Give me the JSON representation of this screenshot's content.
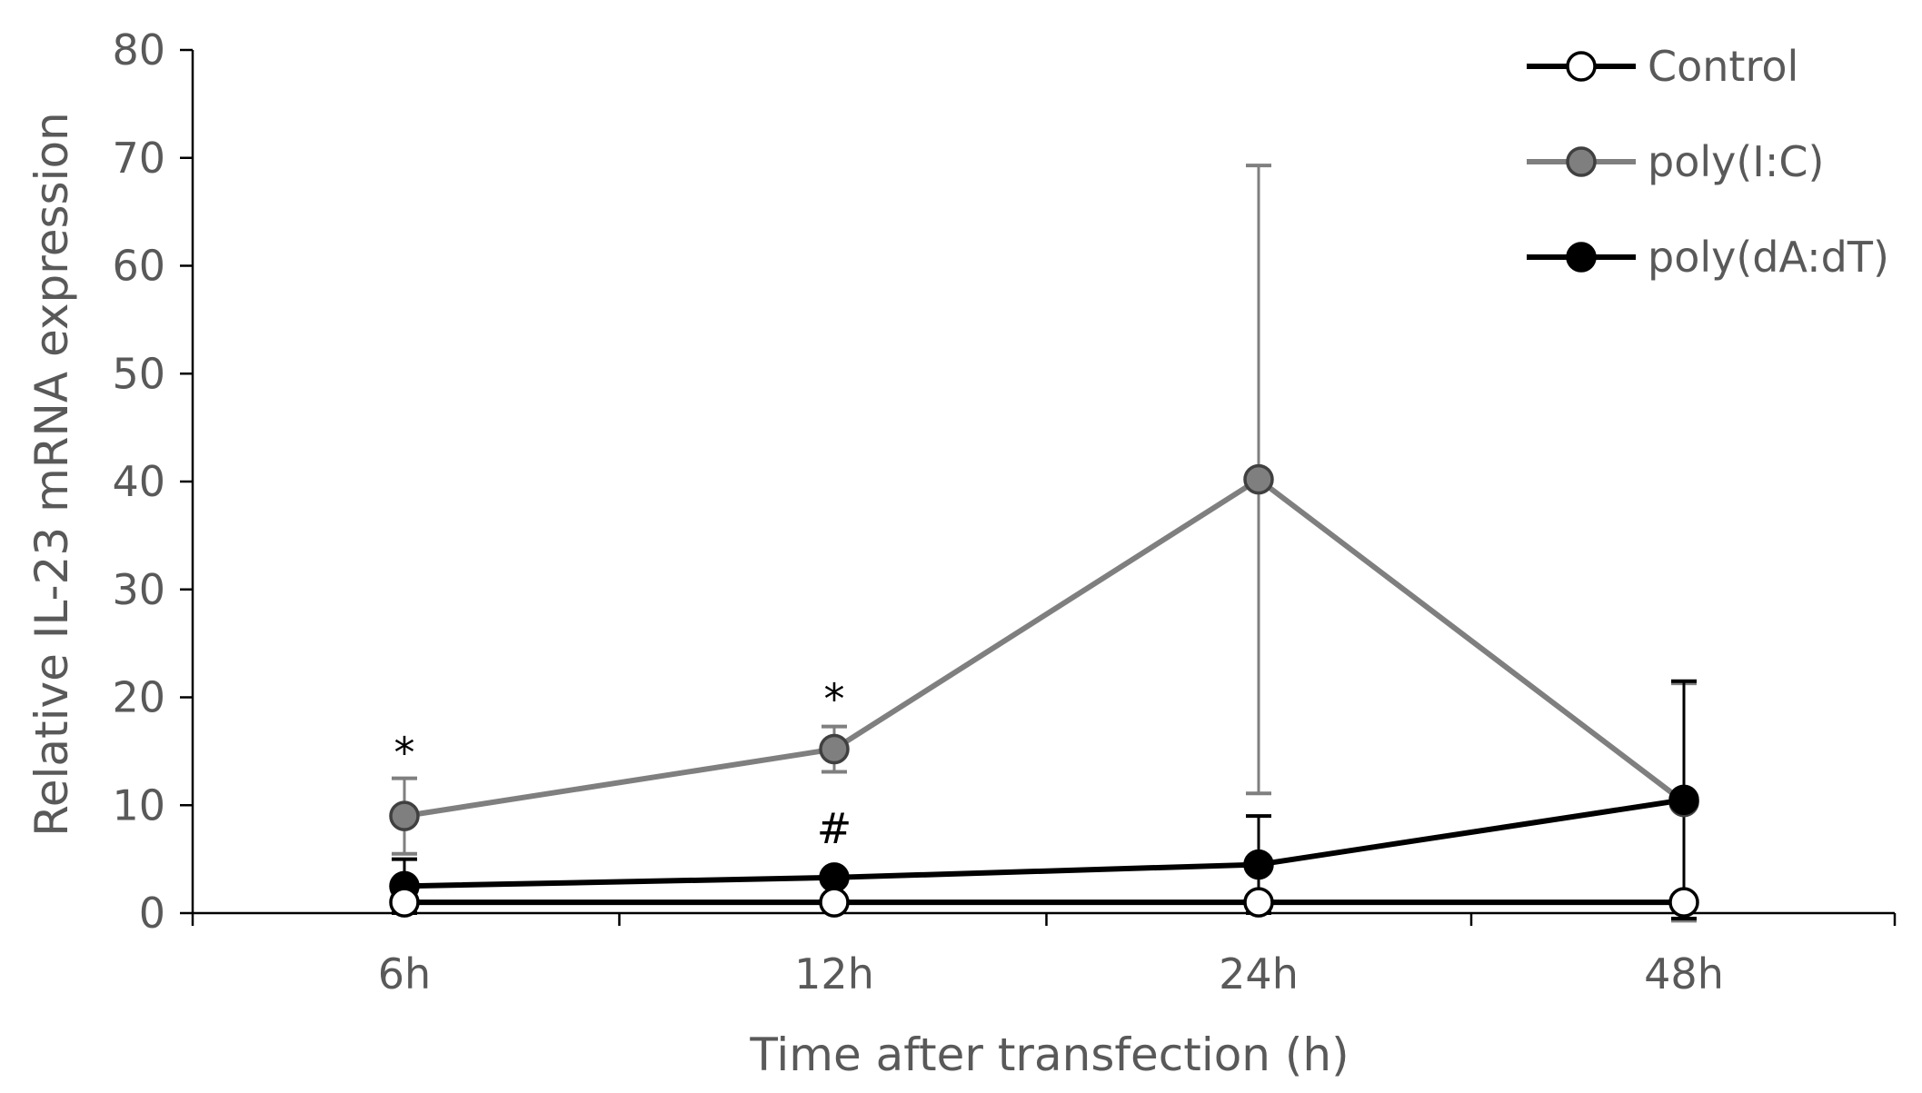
{
  "chart_data": {
    "type": "line",
    "categories": [
      "6h",
      "12h",
      "24h",
      "48h"
    ],
    "xlabel": "Time after transfection (h)",
    "ylabel": "Relative IL-23 mRNA expression",
    "ylim": [
      0,
      80
    ],
    "yticks": [
      "0",
      "10",
      "20",
      "30",
      "40",
      "50",
      "60",
      "70",
      "80"
    ],
    "grid": false,
    "legend_position": "top-right",
    "series": [
      {
        "name": "Control",
        "values": [
          1,
          1,
          1,
          1
        ],
        "error": [
          0,
          0,
          0,
          0
        ],
        "line_color": "#000000",
        "marker_fill": "#ffffff",
        "marker_stroke": "#000000"
      },
      {
        "name": "poly(I:C)",
        "values": [
          9,
          15.2,
          40.2,
          10.3
        ],
        "error": [
          3.5,
          2.1,
          29.1,
          11
        ],
        "line_color": "#7f7f7f",
        "marker_fill": "#7f7f7f",
        "marker_stroke": "#404040"
      },
      {
        "name": "poly(dA:dT)",
        "values": [
          2.5,
          3.3,
          4.5,
          10.5
        ],
        "error": [
          2.5,
          0,
          4.5,
          11
        ],
        "line_color": "#000000",
        "marker_fill": "#000000",
        "marker_stroke": "#000000"
      }
    ],
    "annotations": [
      {
        "category": "6h",
        "text": "*",
        "y": 13.5
      },
      {
        "category": "12h",
        "text": "*",
        "y": 18.5
      },
      {
        "category": "12h",
        "text": "#",
        "y": 6.5
      }
    ]
  }
}
